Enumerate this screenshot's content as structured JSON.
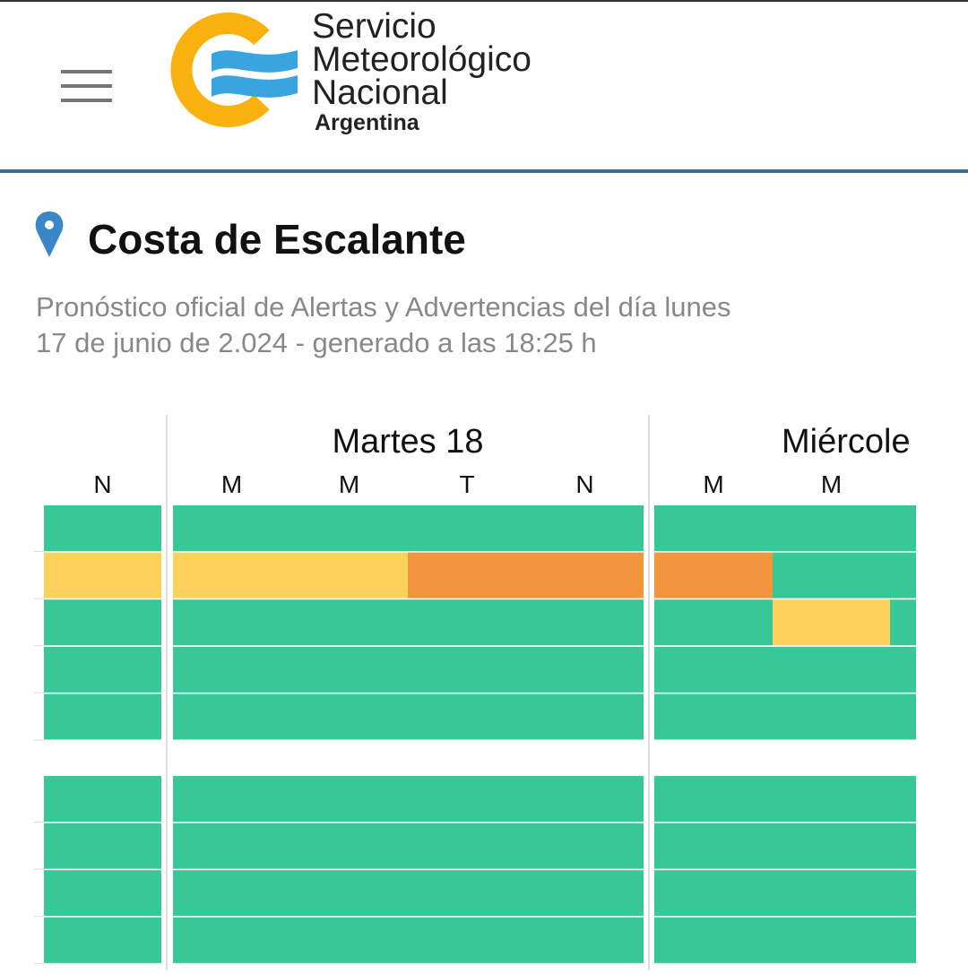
{
  "header": {
    "logo_lines": [
      "Servicio",
      "Meteorológico",
      "Nacional"
    ],
    "logo_country": "Argentina"
  },
  "location": {
    "title": "Costa de Escalante",
    "subtitle": [
      "Pronóstico oficial de Alertas y Advertencias del día lunes",
      "17 de junio de 2.024 - generado a las 18:25 h"
    ]
  },
  "grid": {
    "days": [
      "Martes 18",
      "Miércole"
    ],
    "periods": [
      "N",
      "M",
      "M",
      "T",
      "N",
      "M",
      "M",
      null
    ],
    "blocks": [
      [
        [
          "#38c796",
          "#38c796",
          "#38c796",
          "#38c796",
          "#38c796",
          "#38c796",
          "#38c796",
          "#38c796"
        ],
        [
          "#fdd25a",
          "#fdd25a",
          "#fdd25a",
          "#f2953c",
          "#f2953c",
          "#f2953c",
          "#38c796",
          "#38c796"
        ],
        [
          "#38c796",
          "#38c796",
          "#38c796",
          "#38c796",
          "#38c796",
          "#38c796",
          "#fdd25a",
          "#38c796"
        ],
        [
          "#38c796",
          "#38c796",
          "#38c796",
          "#38c796",
          "#38c796",
          "#38c796",
          "#38c796",
          "#38c796"
        ],
        [
          "#38c796",
          "#38c796",
          "#38c796",
          "#38c796",
          "#38c796",
          "#38c796",
          "#38c796",
          "#38c796"
        ]
      ],
      [
        [
          "#38c796",
          "#38c796",
          "#38c796",
          "#38c796",
          "#38c796",
          "#38c796",
          "#38c796",
          "#38c796"
        ],
        [
          "#38c796",
          "#38c796",
          "#38c796",
          "#38c796",
          "#38c796",
          "#38c796",
          "#38c796",
          "#38c796"
        ],
        [
          "#38c796",
          "#38c796",
          "#38c796",
          "#38c796",
          "#38c796",
          "#38c796",
          "#38c796",
          "#38c796"
        ],
        [
          "#38c796",
          "#38c796",
          "#38c796",
          "#38c796",
          "#38c796",
          "#38c796",
          "#38c796",
          "#38c796"
        ]
      ]
    ]
  }
}
